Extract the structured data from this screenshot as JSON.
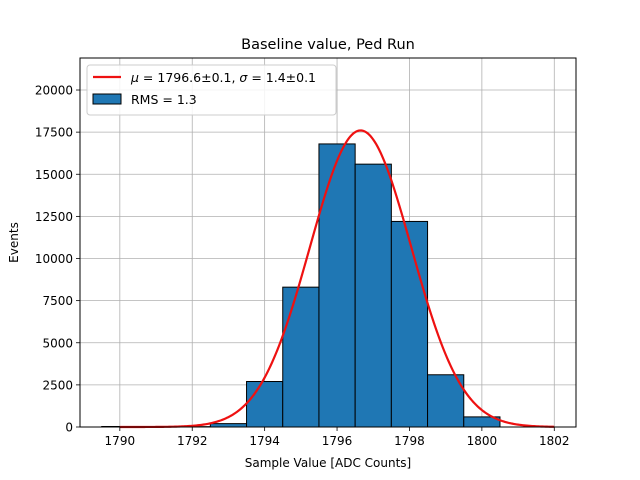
{
  "chart_data": {
    "type": "bar",
    "title": "Baseline value, Ped Run",
    "xlabel": "Sample Value [ADC Counts]",
    "ylabel": "Events",
    "xlim": [
      1788.9,
      1802.6
    ],
    "ylim": [
      0,
      21900
    ],
    "x_ticks": [
      1790,
      1792,
      1794,
      1796,
      1798,
      1800,
      1802
    ],
    "x_tick_labels": [
      "1790",
      "1792",
      "1794",
      "1796",
      "1798",
      "1800",
      "1802"
    ],
    "y_ticks": [
      0,
      2500,
      5000,
      7500,
      10000,
      12500,
      15000,
      17500,
      20000
    ],
    "y_tick_labels": [
      "0",
      "2500",
      "5000",
      "7500",
      "10000",
      "12500",
      "15000",
      "17500",
      "20000"
    ],
    "grid": true,
    "legend_position": "top-left",
    "histogram": {
      "name": "RMS = 1.3",
      "color": "#1f77b4",
      "edge_color": "#000000",
      "bins": [
        {
          "left": 1789.5,
          "right": 1790.5,
          "count": 30
        },
        {
          "left": 1790.5,
          "right": 1791.5,
          "count": 0
        },
        {
          "left": 1791.5,
          "right": 1792.5,
          "count": 20
        },
        {
          "left": 1792.5,
          "right": 1793.5,
          "count": 200
        },
        {
          "left": 1793.5,
          "right": 1794.5,
          "count": 2700
        },
        {
          "left": 1794.5,
          "right": 1795.5,
          "count": 8300
        },
        {
          "left": 1795.5,
          "right": 1796.5,
          "count": 16800
        },
        {
          "left": 1796.5,
          "right": 1797.5,
          "count": 15600
        },
        {
          "left": 1797.5,
          "right": 1798.5,
          "count": 12200
        },
        {
          "left": 1798.5,
          "right": 1799.5,
          "count": 3100
        },
        {
          "left": 1799.5,
          "right": 1800.5,
          "count": 600
        }
      ]
    },
    "fit": {
      "name": "μ = 1796.6±0.1, σ = 1.4±0.1",
      "name_parts": [
        "μ",
        " = 1796.6±0.1, ",
        "σ",
        " = 1.4±0.1"
      ],
      "color": "#ee1111",
      "type": "gaussian",
      "mu": 1796.65,
      "sigma": 1.4,
      "amplitude": 17600,
      "x_range": [
        1790,
        1802
      ]
    }
  }
}
